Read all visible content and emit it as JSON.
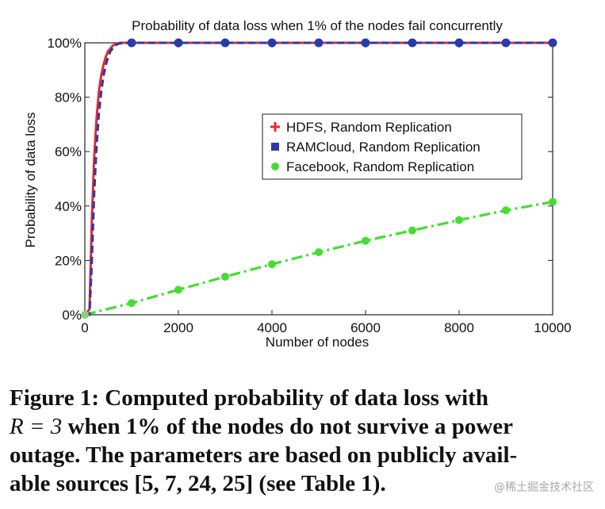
{
  "chart_data": {
    "type": "line",
    "title": "Probability of data loss when 1% of the nodes fail concurrently",
    "xlabel": "Number of nodes",
    "ylabel": "Probability of data loss",
    "xlim": [
      0,
      10000
    ],
    "ylim": [
      0,
      100
    ],
    "x_ticks": [
      "0",
      "2000",
      "4000",
      "6000",
      "8000",
      "10000"
    ],
    "y_ticks": [
      "0%",
      "20%",
      "40%",
      "60%",
      "80%",
      "100%"
    ],
    "grid": false,
    "legend_position": "center-right",
    "series": [
      {
        "name": "HDFS, Random Replication",
        "color": "#e8282f",
        "line_style": "solid",
        "marker": "plus",
        "x": [
          0,
          100,
          150,
          200,
          250,
          300,
          350,
          400,
          450,
          500,
          550,
          600,
          650,
          700,
          750,
          800,
          10000
        ],
        "y": [
          0,
          2,
          35,
          58,
          72,
          82,
          88,
          92,
          95,
          97,
          98,
          99,
          99.5,
          99.8,
          100,
          100,
          100
        ]
      },
      {
        "name": "RAMCloud, Random Replication",
        "color": "#2a3aa8",
        "line_style": "dashed",
        "marker": "square",
        "x": [
          0,
          100,
          150,
          200,
          250,
          300,
          350,
          400,
          450,
          500,
          550,
          600,
          650,
          700,
          750,
          850,
          1000,
          2000,
          3000,
          4000,
          5000,
          6000,
          7000,
          8000,
          9000,
          10000
        ],
        "y": [
          0,
          0,
          20,
          45,
          62,
          74,
          82,
          88,
          92,
          95,
          97,
          98,
          99,
          99.5,
          99.8,
          100,
          100,
          100,
          100,
          100,
          100,
          100,
          100,
          100,
          100,
          100
        ],
        "marker_x": [
          1000,
          2000,
          3000,
          4000,
          5000,
          6000,
          7000,
          8000,
          9000,
          10000
        ]
      },
      {
        "name": "Facebook, Random Replication",
        "color": "#44dd33",
        "line_style": "dash-dot",
        "marker": "circle",
        "x": [
          0,
          1000,
          2000,
          3000,
          4000,
          5000,
          6000,
          7000,
          8000,
          9000,
          10000
        ],
        "y": [
          0,
          4.3,
          9.2,
          14,
          18.6,
          23,
          27.2,
          31,
          34.8,
          38.4,
          41.5
        ]
      }
    ]
  },
  "caption": {
    "line1": "Figure 1:  Computed probability of data loss with",
    "line2_math": "R = 3",
    "line2_rest": " when 1% of the nodes do not survive a power",
    "line3": "outage. The parameters are based on publicly avail-",
    "line4": "able sources [5, 7, 24, 25] (see Table 1)."
  },
  "watermark": "@稀土掘金技术社区"
}
